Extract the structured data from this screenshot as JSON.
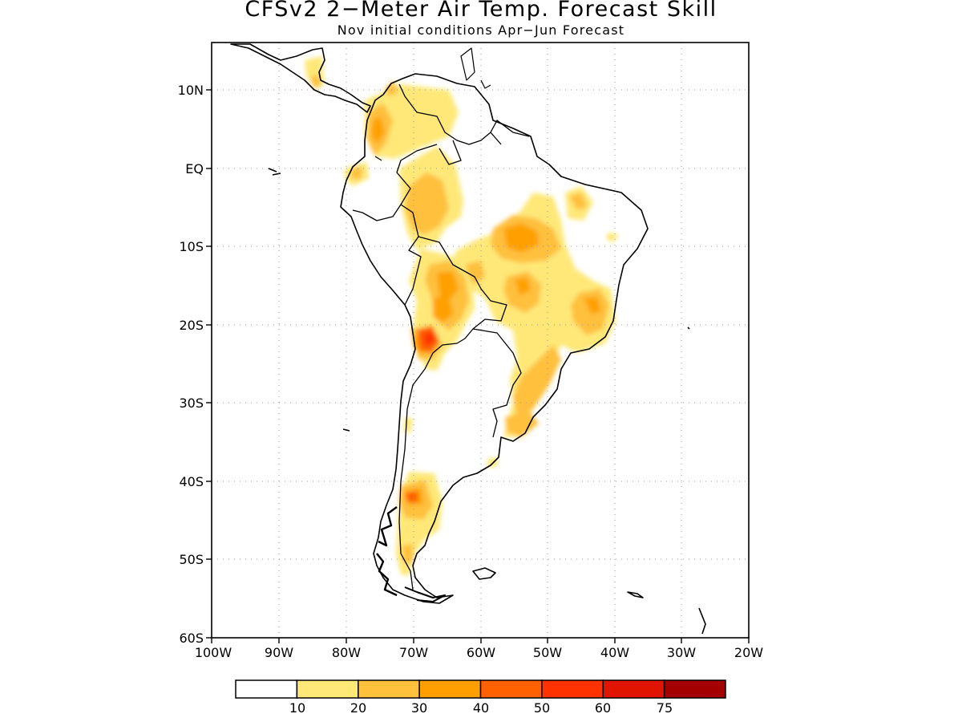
{
  "title": "CFSv2 2−Meter Air Temp. Forecast Skill",
  "subtitle": "Nov initial conditions  Apr−Jun Forecast",
  "map": {
    "lon_range": [
      -100,
      -20
    ],
    "lat_range": [
      -60,
      15
    ],
    "lat_ticks": [
      "10N",
      "EQ",
      "10S",
      "20S",
      "30S",
      "40S",
      "50S",
      "60S"
    ],
    "lon_ticks": [
      "100W",
      "90W",
      "80W",
      "70W",
      "60W",
      "50W",
      "40W",
      "30W",
      "20W"
    ],
    "grid": "dotted"
  },
  "colorbar": {
    "colors": [
      "#ffffff",
      "#ffe878",
      "#ffc03c",
      "#ffa000",
      "#ff6000",
      "#ff3200",
      "#e11400",
      "#a50000"
    ],
    "labels": [
      "10",
      "20",
      "30",
      "40",
      "50",
      "60",
      "75"
    ]
  }
}
